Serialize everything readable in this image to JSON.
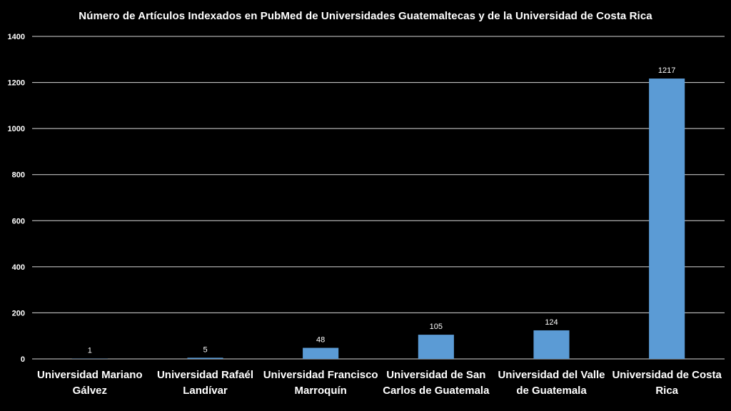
{
  "chart_data": {
    "type": "bar",
    "title": "Número de Artículos Indexados en PubMed de Universidades Guatemaltecas y de la Universidad de Costa Rica",
    "xlabel": "",
    "ylabel": "",
    "categories": [
      [
        "Universidad Mariano",
        "Gálvez"
      ],
      [
        "Universidad Rafaél",
        "Landívar"
      ],
      [
        "Universidad Francisco",
        "Marroquín"
      ],
      [
        "Universidad de San",
        "Carlos de Guatemala"
      ],
      [
        "Universidad del Valle",
        "de Guatemala"
      ],
      [
        "Universidad de Costa",
        "Rica"
      ]
    ],
    "values": [
      1,
      5,
      48,
      105,
      124,
      1217
    ],
    "data_labels": [
      "1",
      "5",
      "48",
      "105",
      "124",
      "1217"
    ],
    "yticks": [
      0,
      200,
      400,
      600,
      800,
      1000,
      1200,
      1400
    ],
    "ylim": [
      0,
      1400
    ],
    "grid": true,
    "legend": "none",
    "colors": {
      "background": "#000000",
      "bar": "#5b9bd5",
      "grid": "#d9d9d9",
      "text": "#ffffff"
    }
  }
}
